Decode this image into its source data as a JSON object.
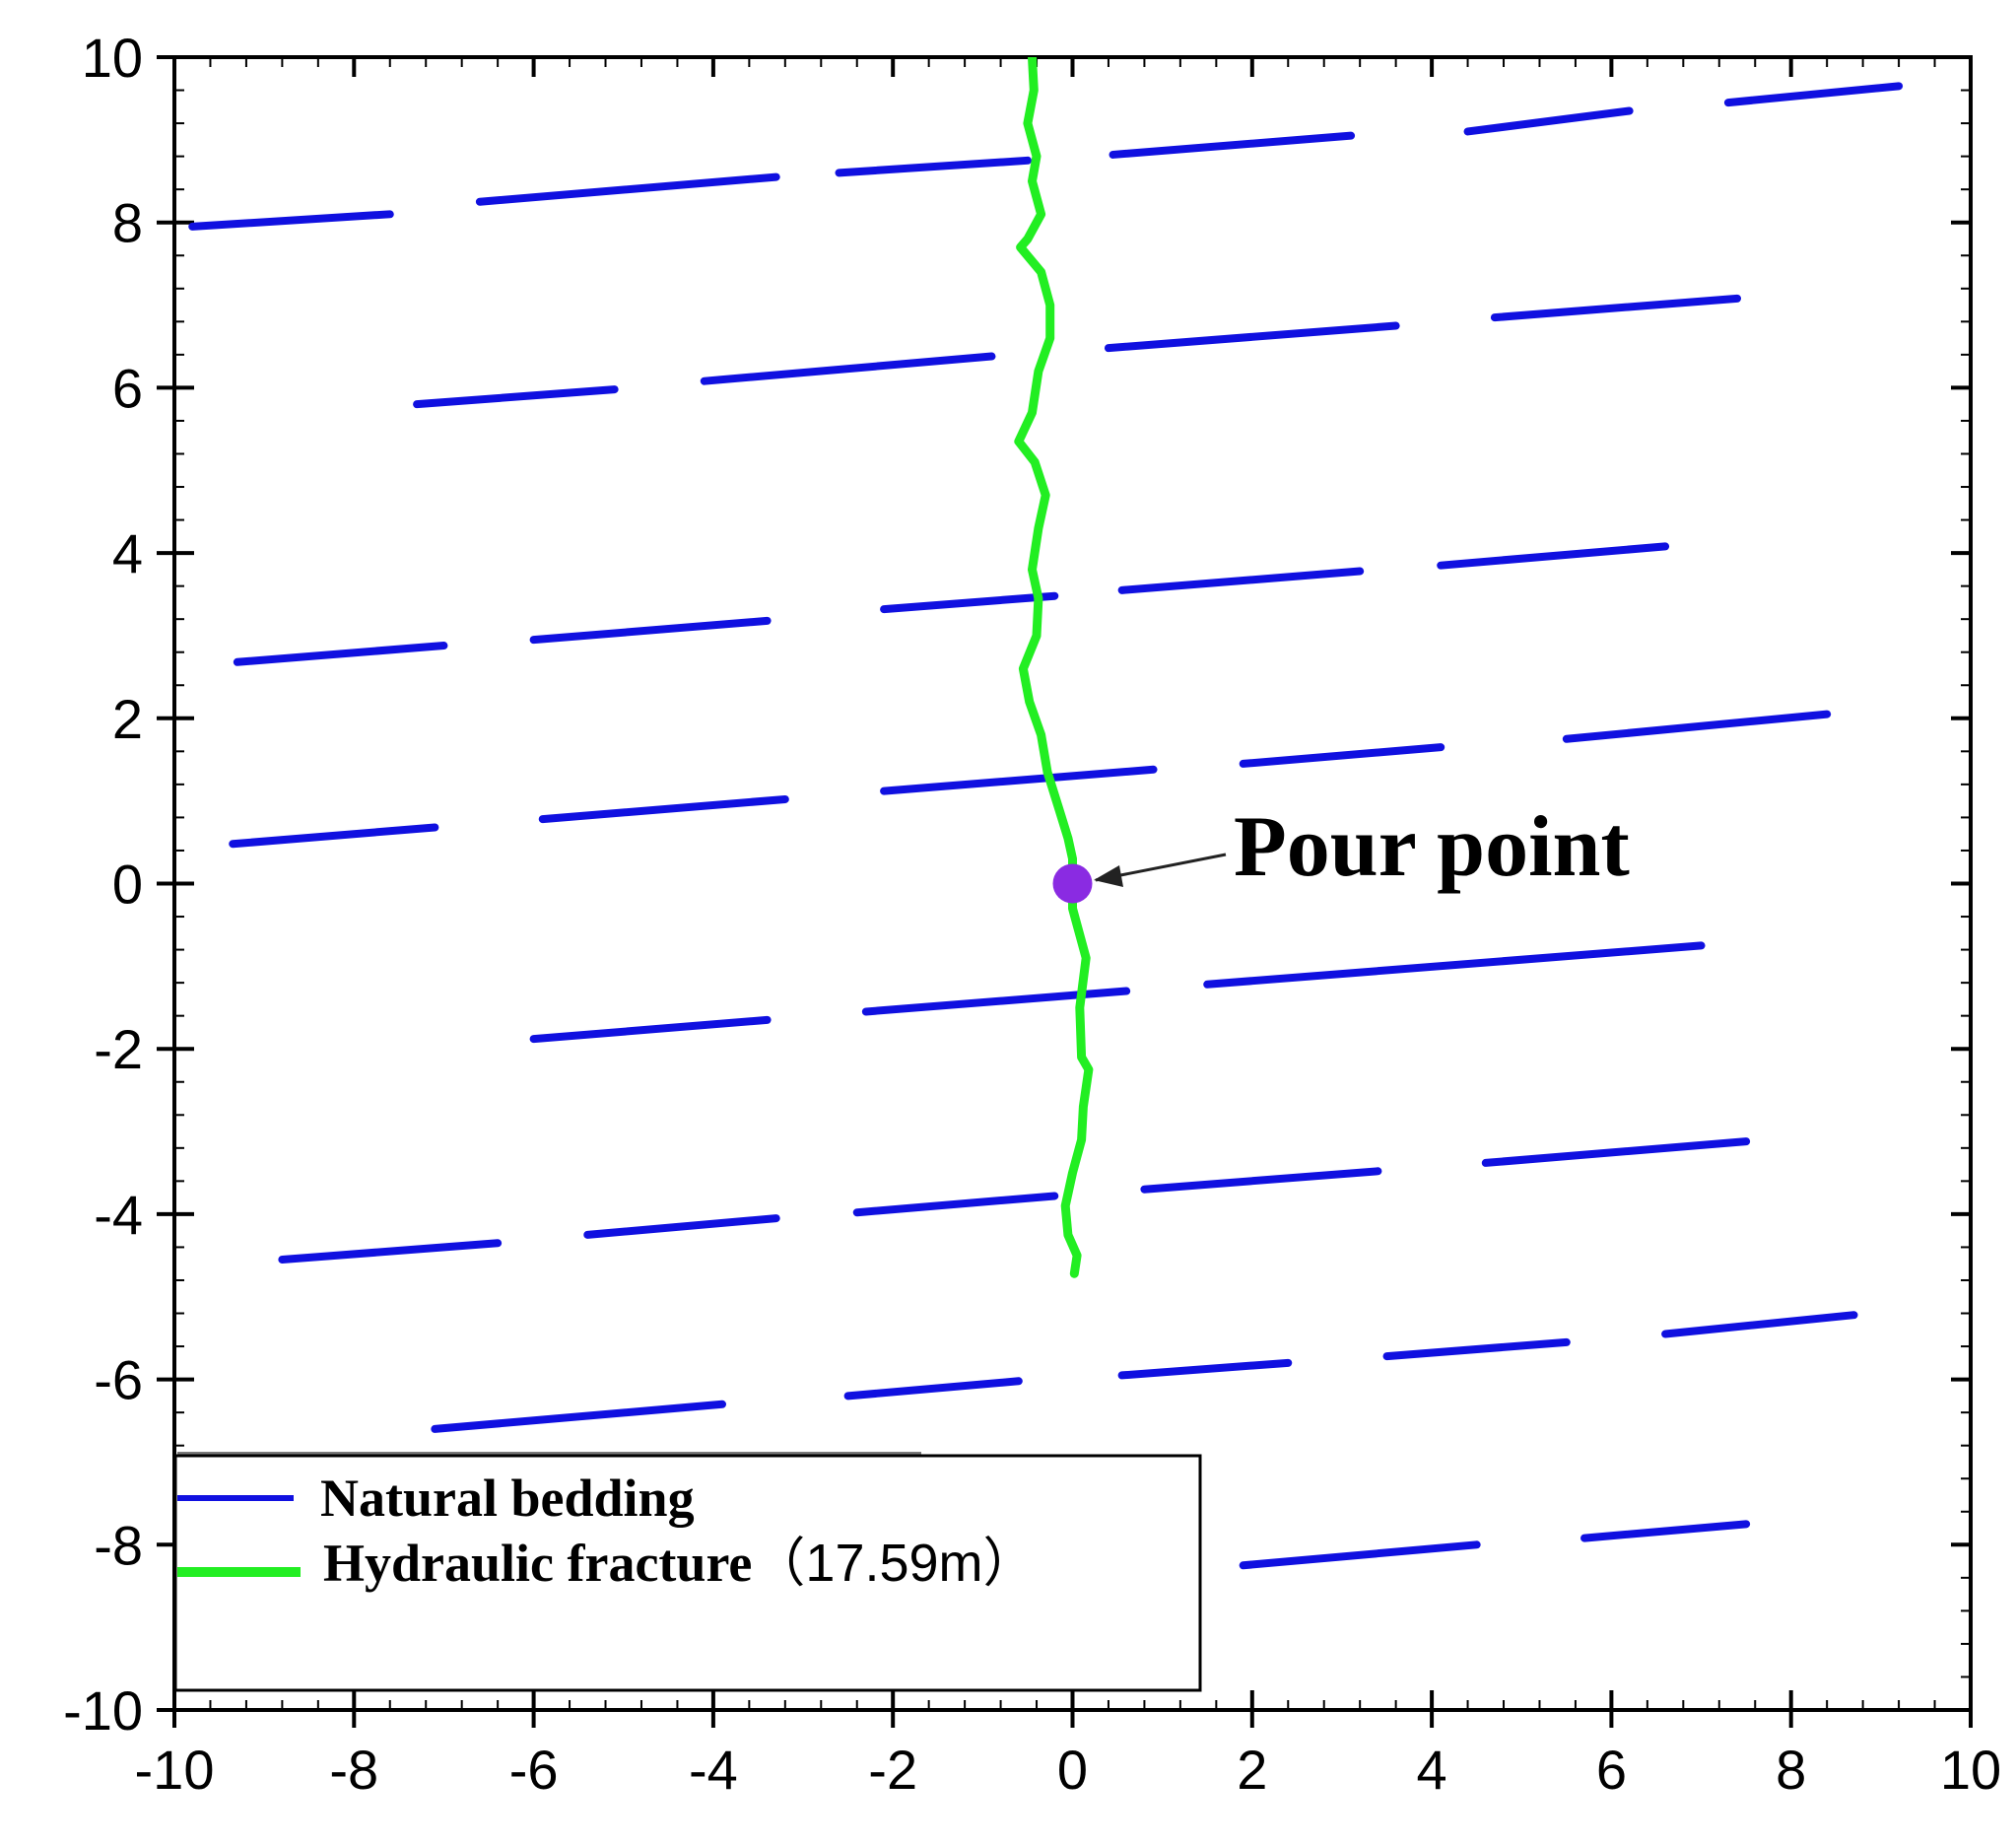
{
  "chart_data": {
    "type": "line",
    "title": "",
    "xlabel": "",
    "ylabel": "",
    "xlim": [
      -10,
      10
    ],
    "ylim": [
      -10,
      10
    ],
    "x_ticks": [
      "-10",
      "-8",
      "-6",
      "-4",
      "-2",
      "0",
      "2",
      "4",
      "6",
      "8",
      "10"
    ],
    "y_ticks": [
      "-10",
      "-8",
      "-6",
      "-4",
      "-2",
      "0",
      "2",
      "4",
      "6",
      "8",
      "10"
    ],
    "grid": false,
    "legend": {
      "placement": "bottom-left",
      "entries": [
        {
          "label": "Natural bedding",
          "color": "#1010e0"
        },
        {
          "label": "Hydraulic fracture",
          "suffix": "（17.59m）",
          "color": "#22ee22"
        }
      ]
    },
    "series": [
      {
        "name": "Natural bedding",
        "color": "#1010e0",
        "segments": [
          [
            [
              -9.8,
              7.95
            ],
            [
              -7.6,
              8.1
            ]
          ],
          [
            [
              -6.6,
              8.25
            ],
            [
              -3.3,
              8.55
            ]
          ],
          [
            [
              -2.6,
              8.6
            ],
            [
              -0.5,
              8.75
            ]
          ],
          [
            [
              0.45,
              8.82
            ],
            [
              3.1,
              9.05
            ]
          ],
          [
            [
              4.4,
              9.1
            ],
            [
              6.2,
              9.35
            ]
          ],
          [
            [
              7.3,
              9.45
            ],
            [
              9.2,
              9.65
            ]
          ],
          [
            [
              -7.3,
              5.8
            ],
            [
              -5.1,
              5.98
            ]
          ],
          [
            [
              -4.1,
              6.08
            ],
            [
              -0.9,
              6.38
            ]
          ],
          [
            [
              0.4,
              6.48
            ],
            [
              3.6,
              6.75
            ]
          ],
          [
            [
              4.7,
              6.85
            ],
            [
              7.4,
              7.08
            ]
          ],
          [
            [
              -9.3,
              2.68
            ],
            [
              -7.0,
              2.88
            ]
          ],
          [
            [
              -6.0,
              2.95
            ],
            [
              -3.4,
              3.18
            ]
          ],
          [
            [
              -2.1,
              3.32
            ],
            [
              -0.2,
              3.48
            ]
          ],
          [
            [
              0.55,
              3.55
            ],
            [
              3.2,
              3.78
            ]
          ],
          [
            [
              4.1,
              3.85
            ],
            [
              6.6,
              4.08
            ]
          ],
          [
            [
              -9.35,
              0.48
            ],
            [
              -7.1,
              0.68
            ]
          ],
          [
            [
              -5.9,
              0.78
            ],
            [
              -3.2,
              1.02
            ]
          ],
          [
            [
              -2.1,
              1.12
            ],
            [
              0.9,
              1.38
            ]
          ],
          [
            [
              1.9,
              1.45
            ],
            [
              4.1,
              1.65
            ]
          ],
          [
            [
              5.5,
              1.75
            ],
            [
              8.4,
              2.05
            ]
          ],
          [
            [
              -6.0,
              -1.88
            ],
            [
              -3.4,
              -1.65
            ]
          ],
          [
            [
              -2.3,
              -1.55
            ],
            [
              0.6,
              -1.3
            ]
          ],
          [
            [
              1.5,
              -1.22
            ],
            [
              7.0,
              -0.75
            ]
          ],
          [
            [
              -8.8,
              -4.55
            ],
            [
              -6.4,
              -4.35
            ]
          ],
          [
            [
              -5.4,
              -4.25
            ],
            [
              -3.3,
              -4.05
            ]
          ],
          [
            [
              -2.4,
              -3.98
            ],
            [
              -0.2,
              -3.78
            ]
          ],
          [
            [
              0.8,
              -3.7
            ],
            [
              3.4,
              -3.48
            ]
          ],
          [
            [
              4.6,
              -3.38
            ],
            [
              7.5,
              -3.12
            ]
          ],
          [
            [
              -7.1,
              -6.6
            ],
            [
              -3.9,
              -6.3
            ]
          ],
          [
            [
              -2.5,
              -6.2
            ],
            [
              -0.6,
              -6.02
            ]
          ],
          [
            [
              0.55,
              -5.95
            ],
            [
              2.4,
              -5.8
            ]
          ],
          [
            [
              3.5,
              -5.72
            ],
            [
              5.5,
              -5.55
            ]
          ],
          [
            [
              6.6,
              -5.45
            ],
            [
              8.7,
              -5.22
            ]
          ],
          [
            [
              1.9,
              -8.25
            ],
            [
              4.5,
              -8.0
            ]
          ],
          [
            [
              5.7,
              -7.92
            ],
            [
              7.5,
              -7.75
            ]
          ]
        ]
      },
      {
        "name": "Hydraulic fracture",
        "color": "#22ee22",
        "points": [
          [
            -0.45,
            10.0
          ],
          [
            -0.43,
            9.6
          ],
          [
            -0.5,
            9.2
          ],
          [
            -0.4,
            8.8
          ],
          [
            -0.45,
            8.5
          ],
          [
            -0.35,
            8.1
          ],
          [
            -0.5,
            7.8
          ],
          [
            -0.58,
            7.7
          ],
          [
            -0.35,
            7.4
          ],
          [
            -0.25,
            7.0
          ],
          [
            -0.25,
            6.6
          ],
          [
            -0.38,
            6.2
          ],
          [
            -0.45,
            5.7
          ],
          [
            -0.6,
            5.35
          ],
          [
            -0.42,
            5.1
          ],
          [
            -0.3,
            4.7
          ],
          [
            -0.38,
            4.3
          ],
          [
            -0.45,
            3.8
          ],
          [
            -0.38,
            3.45
          ],
          [
            -0.4,
            3.0
          ],
          [
            -0.55,
            2.6
          ],
          [
            -0.48,
            2.2
          ],
          [
            -0.35,
            1.8
          ],
          [
            -0.28,
            1.35
          ],
          [
            -0.15,
            0.9
          ],
          [
            -0.05,
            0.55
          ],
          [
            0.0,
            0.3
          ],
          [
            0.0,
            0.0
          ],
          [
            0.0,
            -0.3
          ],
          [
            0.15,
            -0.9
          ],
          [
            0.08,
            -1.5
          ],
          [
            0.1,
            -2.1
          ],
          [
            0.18,
            -2.25
          ],
          [
            0.12,
            -2.7
          ],
          [
            0.1,
            -3.1
          ],
          [
            0.0,
            -3.5
          ],
          [
            -0.08,
            -3.9
          ],
          [
            -0.05,
            -4.25
          ],
          [
            0.05,
            -4.5
          ],
          [
            0.02,
            -4.72
          ]
        ]
      }
    ],
    "markers": [
      {
        "x": 0,
        "y": 0,
        "color": "#8a2be2"
      }
    ],
    "annotations": [
      {
        "text": "Pour point",
        "x": 0,
        "y": 0
      }
    ]
  }
}
